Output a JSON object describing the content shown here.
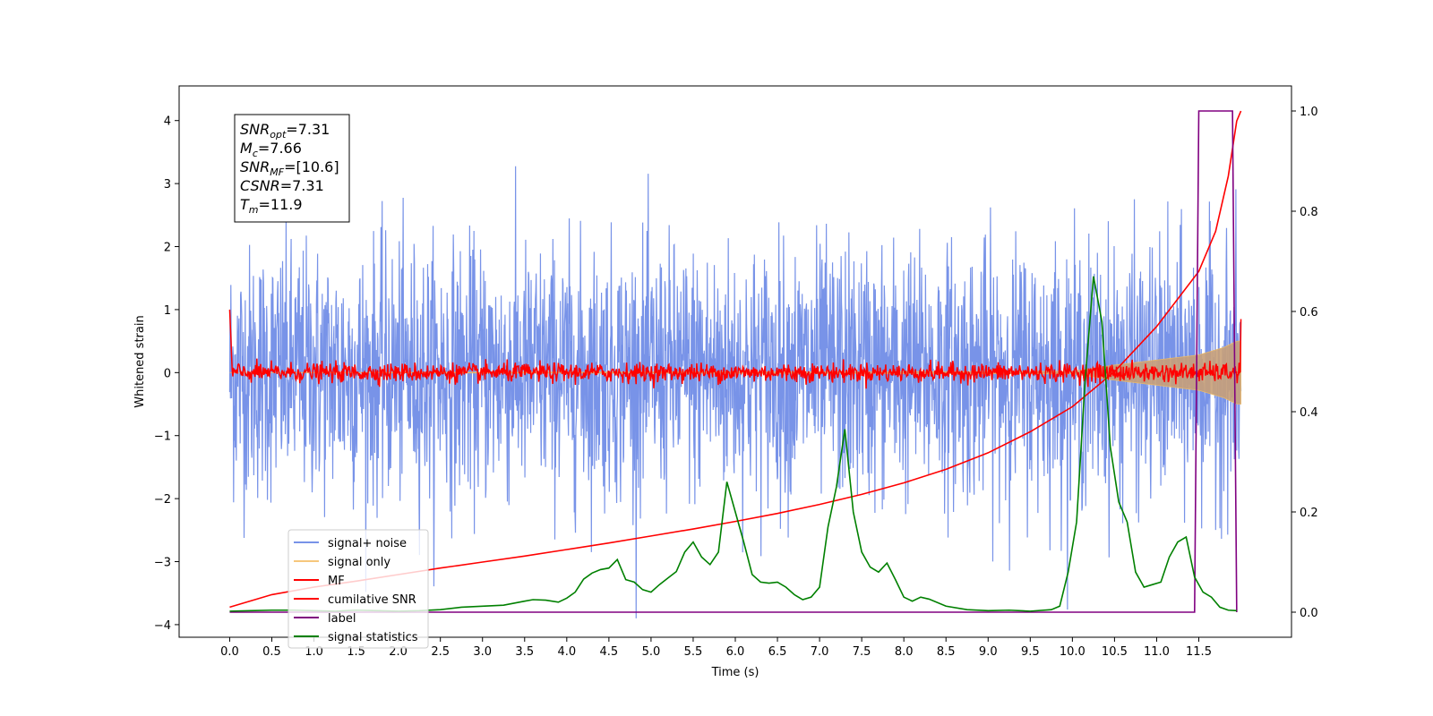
{
  "chart_data": {
    "type": "line",
    "xlabel": "Time (s)",
    "ylabel_left": "Whitened strain",
    "xlim": [
      -0.6,
      12.6
    ],
    "ylim_left": [
      -4.2,
      4.55
    ],
    "ylim_right": [
      -0.05,
      1.05
    ],
    "x_ticks": [
      0.0,
      0.5,
      1.0,
      1.5,
      2.0,
      2.5,
      3.0,
      3.5,
      4.0,
      4.5,
      5.0,
      5.5,
      6.0,
      6.5,
      7.0,
      7.5,
      8.0,
      8.5,
      9.0,
      9.5,
      10.0,
      10.5,
      11.0,
      11.5
    ],
    "x_tick_labels": [
      "0.0",
      "0.5",
      "1.0",
      "1.5",
      "2.0",
      "2.5",
      "3.0",
      "3.5",
      "4.0",
      "4.5",
      "5.0",
      "5.5",
      "6.0",
      "6.5",
      "7.0",
      "7.5",
      "8.0",
      "8.5",
      "9.0",
      "9.5",
      "10.0",
      "10.5",
      "11.0",
      "11.5"
    ],
    "y_ticks_left": [
      -4,
      -3,
      -2,
      -1,
      0,
      1,
      2,
      3,
      4
    ],
    "y_tick_labels_left": [
      "−4",
      "−3",
      "−2",
      "−1",
      "0",
      "1",
      "2",
      "3",
      "4"
    ],
    "y_ticks_right": [
      0.0,
      0.2,
      0.4,
      0.6,
      0.8,
      1.0
    ],
    "y_tick_labels_right": [
      "0.0",
      "0.2",
      "0.4",
      "0.6",
      "0.8",
      "1.0"
    ],
    "grid": false,
    "legend_placement": "lower-left",
    "stats_box": [
      {
        "sym": "SNR",
        "sub": "opt",
        "val": "=7.31"
      },
      {
        "sym": "M",
        "sub": "c",
        "val": "=7.66"
      },
      {
        "sym": "SNR",
        "sub": "MF",
        "val": "=[10.6]"
      },
      {
        "sym": "CSNR",
        "sub": "",
        "val": "=7.31"
      },
      {
        "sym": "T",
        "sub": "m",
        "val": "=11.9"
      }
    ],
    "series": [
      {
        "name": "signal+ noise",
        "color": "#7893e8",
        "axis": "left",
        "kind": "noise",
        "x_range": [
          0.0,
          12.0
        ],
        "amplitude_std": 1.0
      },
      {
        "name": "signal only",
        "color": "#c8a078",
        "axis": "left",
        "kind": "chirp",
        "x_range": [
          0.0,
          12.0
        ],
        "envelope": {
          "x": [
            0,
            10.0,
            10.5,
            11.0,
            11.5,
            11.8,
            11.95
          ],
          "y": [
            0.0,
            0.02,
            0.12,
            0.2,
            0.28,
            0.4,
            0.5
          ]
        }
      },
      {
        "name": "MF",
        "color": "#ff0000",
        "axis": "left",
        "kind": "mf",
        "x_range": [
          0.0,
          12.0
        ],
        "start_value": 1.0,
        "amplitude": 0.1,
        "end_value": 0.85
      },
      {
        "name": "cumilative SNR",
        "color": "#ff0000",
        "axis": "right",
        "x": [
          0.0,
          0.5,
          1.0,
          1.5,
          2.0,
          2.5,
          3.0,
          3.5,
          4.0,
          4.5,
          5.0,
          5.5,
          6.0,
          6.5,
          7.0,
          7.5,
          8.0,
          8.5,
          9.0,
          9.5,
          10.0,
          10.5,
          11.0,
          11.5,
          11.7,
          11.85,
          11.95,
          12.0
        ],
        "y": [
          0.01,
          0.035,
          0.05,
          0.062,
          0.075,
          0.088,
          0.1,
          0.112,
          0.125,
          0.138,
          0.152,
          0.166,
          0.181,
          0.197,
          0.215,
          0.235,
          0.258,
          0.285,
          0.318,
          0.36,
          0.41,
          0.48,
          0.57,
          0.68,
          0.76,
          0.87,
          0.98,
          1.0
        ]
      },
      {
        "name": "label",
        "color": "#800080",
        "axis": "right",
        "x": [
          0.0,
          11.45,
          11.5,
          11.9,
          11.95
        ],
        "y": [
          0.0,
          0.0,
          1.0,
          1.0,
          0.0
        ]
      },
      {
        "name": "signal statistics",
        "color": "#008000",
        "axis": "right",
        "x": [
          0.0,
          0.25,
          0.5,
          0.75,
          1.0,
          1.25,
          1.5,
          1.75,
          2.0,
          2.25,
          2.5,
          2.75,
          3.0,
          3.25,
          3.5,
          3.6,
          3.75,
          3.9,
          4.0,
          4.1,
          4.2,
          4.3,
          4.4,
          4.5,
          4.6,
          4.7,
          4.8,
          4.9,
          5.0,
          5.1,
          5.2,
          5.3,
          5.4,
          5.5,
          5.6,
          5.7,
          5.8,
          5.9,
          6.0,
          6.1,
          6.2,
          6.3,
          6.4,
          6.5,
          6.6,
          6.7,
          6.8,
          6.9,
          7.0,
          7.1,
          7.2,
          7.3,
          7.4,
          7.5,
          7.6,
          7.7,
          7.8,
          7.9,
          8.0,
          8.1,
          8.2,
          8.3,
          8.5,
          8.75,
          9.0,
          9.25,
          9.5,
          9.75,
          9.85,
          9.95,
          10.05,
          10.15,
          10.25,
          10.35,
          10.45,
          10.55,
          10.65,
          10.75,
          10.85,
          10.95,
          11.05,
          11.15,
          11.25,
          11.35,
          11.45,
          11.55,
          11.65,
          11.75,
          11.85,
          11.95
        ],
        "y": [
          0.002,
          0.003,
          0.004,
          0.004,
          0.003,
          0.002,
          0.004,
          0.003,
          0.002,
          0.003,
          0.005,
          0.01,
          0.012,
          0.014,
          0.022,
          0.025,
          0.024,
          0.02,
          0.028,
          0.04,
          0.066,
          0.078,
          0.085,
          0.088,
          0.105,
          0.065,
          0.06,
          0.045,
          0.04,
          0.055,
          0.068,
          0.081,
          0.12,
          0.14,
          0.11,
          0.095,
          0.12,
          0.26,
          0.2,
          0.14,
          0.075,
          0.06,
          0.058,
          0.06,
          0.05,
          0.035,
          0.025,
          0.03,
          0.05,
          0.17,
          0.25,
          0.365,
          0.2,
          0.12,
          0.09,
          0.08,
          0.098,
          0.065,
          0.03,
          0.022,
          0.03,
          0.026,
          0.012,
          0.005,
          0.003,
          0.004,
          0.002,
          0.005,
          0.012,
          0.08,
          0.18,
          0.46,
          0.67,
          0.58,
          0.33,
          0.22,
          0.18,
          0.08,
          0.05,
          0.055,
          0.06,
          0.11,
          0.14,
          0.15,
          0.07,
          0.04,
          0.03,
          0.01,
          0.004,
          0.003
        ]
      }
    ]
  }
}
